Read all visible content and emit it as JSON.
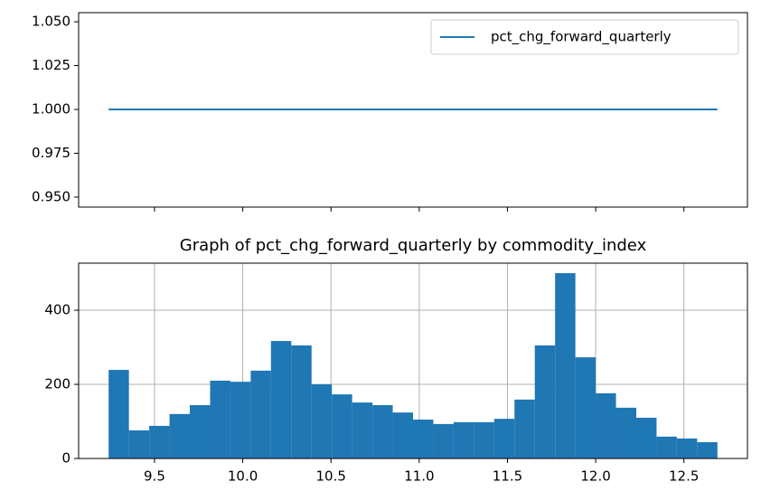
{
  "chart_data": [
    {
      "type": "line",
      "x": [
        9.24,
        12.69
      ],
      "series": [
        {
          "name": "pct_chg_forward_quarterly",
          "color": "#1f77b4",
          "values": [
            1.0,
            1.0
          ]
        }
      ],
      "xlim": [
        9.07,
        12.86
      ],
      "ylim": [
        0.9443,
        1.0552
      ],
      "yticks": [
        {
          "value": 0.95,
          "label": "0.950"
        },
        {
          "value": 0.975,
          "label": "0.975"
        },
        {
          "value": 1.0,
          "label": "1.000"
        },
        {
          "value": 1.025,
          "label": "1.025"
        },
        {
          "value": 1.05,
          "label": "1.050"
        }
      ],
      "legend": "upper right",
      "grid": false
    },
    {
      "type": "histogram",
      "title": "Graph of pct_chg_forward_quarterly by commodity_index",
      "bins": [
        9.24,
        9.355,
        9.47,
        9.585,
        9.7,
        9.815,
        9.93,
        10.045,
        10.16,
        10.275,
        10.39,
        10.505,
        10.62,
        10.735,
        10.85,
        10.965,
        11.08,
        11.195,
        11.31,
        11.425,
        11.54,
        11.655,
        11.77,
        11.885,
        12.0,
        12.115,
        12.23,
        12.345,
        12.46,
        12.575,
        12.69
      ],
      "values": [
        239,
        76,
        88,
        120,
        144,
        210,
        207,
        237,
        317,
        305,
        200,
        173,
        151,
        144,
        124,
        105,
        93,
        98,
        98,
        107,
        159,
        305,
        500,
        273,
        176,
        137,
        110,
        59,
        54,
        44
      ],
      "color": "#1f77b4",
      "xlim": [
        9.07,
        12.86
      ],
      "xticks": [
        9.5,
        {
          "value": 10.0,
          "label": "10.0"
        },
        10.5,
        {
          "value": 11.0,
          "label": "11.0"
        },
        11.5,
        {
          "value": 12.0,
          "label": "12.0"
        },
        12.5
      ],
      "ylim": [
        0,
        527
      ],
      "yticks": [
        0,
        200,
        400
      ],
      "grid": true
    }
  ]
}
